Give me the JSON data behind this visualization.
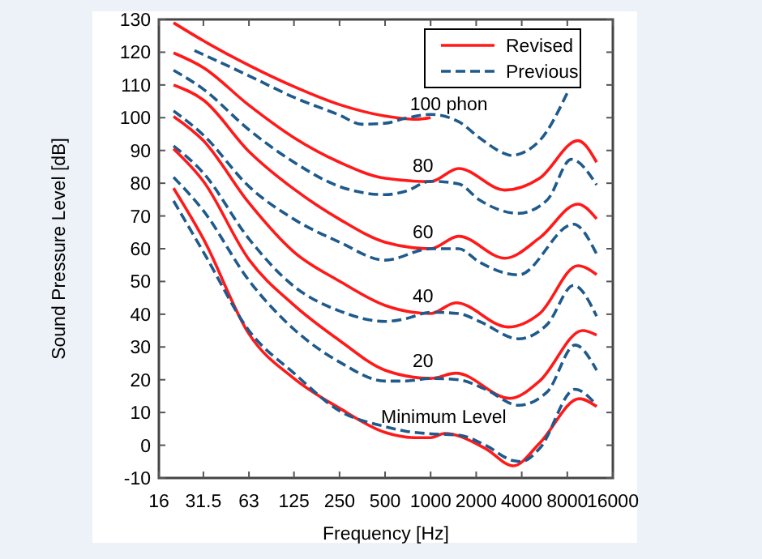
{
  "chart_data": {
    "type": "line",
    "xlabel": "Frequency [Hz]",
    "ylabel": "Sound Pressure Level [dB]",
    "log": "x",
    "xlim": [
      16,
      16000
    ],
    "ylim": [
      -10,
      130
    ],
    "xticks": [
      16,
      31.5,
      63,
      125,
      250,
      500,
      1000,
      2000,
      4000,
      8000,
      16000
    ],
    "yticks": [
      -10,
      0,
      10,
      20,
      30,
      40,
      50,
      60,
      70,
      80,
      90,
      100,
      110,
      120,
      130
    ],
    "grid": false,
    "legend": "top right",
    "marker": "none",
    "series": [
      {
        "name": "Revised",
        "color": "#ff1a1a",
        "line_style": "solid",
        "x": [
          20,
          31.5,
          63,
          125,
          250,
          500,
          800,
          1000
        ],
        "values": [
          129,
          123.5,
          116,
          109.5,
          104,
          100.5,
          99.5,
          100
        ]
      },
      {
        "name": "Previous",
        "color": "#1f5a8c",
        "line_style": "dashed",
        "x": [
          27.5,
          63,
          125,
          250,
          350,
          500,
          680,
          1000,
          1530,
          2100,
          3100,
          3400,
          5250,
          8000
        ],
        "values": [
          120.5,
          112.8,
          106.2,
          100.8,
          98,
          98.3,
          99.8,
          101,
          98.8,
          93.9,
          89,
          88.5,
          93,
          107.6
        ]
      },
      {
        "color": "#ff1a1a",
        "line_style": "solid",
        "x": [
          20,
          31.5,
          63,
          125,
          250,
          500,
          1000,
          1530,
          3100,
          5250,
          9400,
          12500
        ],
        "values": [
          119.8,
          115.3,
          103.8,
          93.9,
          86.4,
          81.5,
          80.5,
          84.5,
          77.9,
          81.5,
          93,
          86.4
        ]
      },
      {
        "color": "#1f5a8c",
        "line_style": "dashed",
        "x": [
          20,
          31.5,
          63,
          125,
          250,
          500,
          680,
          1000,
          1530,
          2100,
          3800,
          5900,
          8500,
          12500
        ],
        "values": [
          114.5,
          108.7,
          96.3,
          86.4,
          79,
          76.5,
          77.5,
          80.6,
          79.8,
          74.9,
          70.8,
          74.9,
          87.3,
          79.5
        ]
      },
      {
        "color": "#ff1a1a",
        "line_style": "solid",
        "x": [
          20,
          31.5,
          63,
          125,
          250,
          500,
          1000,
          1530,
          3100,
          5250,
          9400,
          12500
        ],
        "values": [
          110,
          105.4,
          89.7,
          78.2,
          69,
          62,
          60,
          63.8,
          57.1,
          63.3,
          73.6,
          69.1
        ]
      },
      {
        "color": "#1f5a8c",
        "line_style": "dashed",
        "x": [
          20,
          31.5,
          63,
          125,
          250,
          500,
          1000,
          1530,
          2100,
          3800,
          8800,
          12500
        ],
        "values": [
          102.1,
          94.7,
          79,
          69,
          62,
          56.5,
          60,
          60,
          55.9,
          52,
          67.5,
          58.4
        ]
      },
      {
        "color": "#ff1a1a",
        "line_style": "solid",
        "x": [
          20,
          31.5,
          63,
          125,
          250,
          500,
          1000,
          1470,
          3240,
          5250,
          9400,
          12500
        ],
        "values": [
          100.4,
          93,
          74,
          59,
          50.1,
          42.7,
          40.2,
          43.5,
          36.1,
          40.2,
          54.8,
          52.1
        ]
      },
      {
        "color": "#1f5a8c",
        "line_style": "dashed",
        "x": [
          20,
          31.5,
          63,
          125,
          250,
          500,
          680,
          1000,
          1530,
          2100,
          3800,
          5900,
          8800,
          12500
        ],
        "values": [
          91.4,
          83.1,
          63,
          48.5,
          41,
          37.8,
          38.6,
          40.6,
          40.2,
          37.8,
          32.5,
          36.9,
          48.8,
          39.4
        ]
      },
      {
        "color": "#ff1a1a",
        "line_style": "solid",
        "x": [
          20,
          31.5,
          63,
          125,
          250,
          500,
          1000,
          1470,
          3350,
          5250,
          10100,
          12500
        ],
        "values": [
          90.5,
          80.6,
          56.7,
          42.8,
          32,
          22.9,
          20.4,
          22,
          14.3,
          19.6,
          35,
          33.6
        ]
      },
      {
        "color": "#1f5a8c",
        "line_style": "dashed",
        "x": [
          20,
          31.5,
          63,
          125,
          250,
          500,
          680,
          1000,
          1530,
          2300,
          3800,
          5900,
          9000,
          12500
        ],
        "values": [
          81.8,
          71.6,
          50.3,
          35.4,
          25.4,
          19.6,
          19.6,
          20.4,
          20,
          17.1,
          12.2,
          16.3,
          30.6,
          22.9
        ]
      },
      {
        "color": "#ff1a1a",
        "line_style": "solid",
        "x": [
          20,
          31.5,
          63,
          125,
          250,
          500,
          800,
          1000,
          1240,
          2300,
          3520,
          5250,
          9600,
          12500
        ],
        "values": [
          78.5,
          63,
          34,
          20.4,
          11.3,
          3.9,
          2.3,
          2.3,
          3.6,
          -1,
          -6.3,
          0.6,
          14.2,
          11.8
        ]
      },
      {
        "color": "#1f5a8c",
        "line_style": "dashed",
        "x": [
          20,
          31.5,
          63,
          125,
          250,
          500,
          680,
          1000,
          1530,
          2300,
          3500,
          3970,
          5250,
          9000,
          12500
        ],
        "values": [
          74.6,
          59,
          35,
          22,
          10.5,
          5.7,
          4.3,
          3.5,
          3.1,
          0,
          -4.7,
          -5,
          -1,
          17.1,
          12.2
        ]
      }
    ],
    "annotations": [
      {
        "text": "100 phon",
        "x": 730,
        "y": 99.8
      },
      {
        "text": "80",
        "x": 760,
        "y": 81
      },
      {
        "text": "60",
        "x": 760,
        "y": 60.8
      },
      {
        "text": "40",
        "x": 760,
        "y": 41.2
      },
      {
        "text": "20",
        "x": 760,
        "y": 21.5
      },
      {
        "text": "Minimum Level",
        "x": 470,
        "y": 4.3
      }
    ]
  }
}
